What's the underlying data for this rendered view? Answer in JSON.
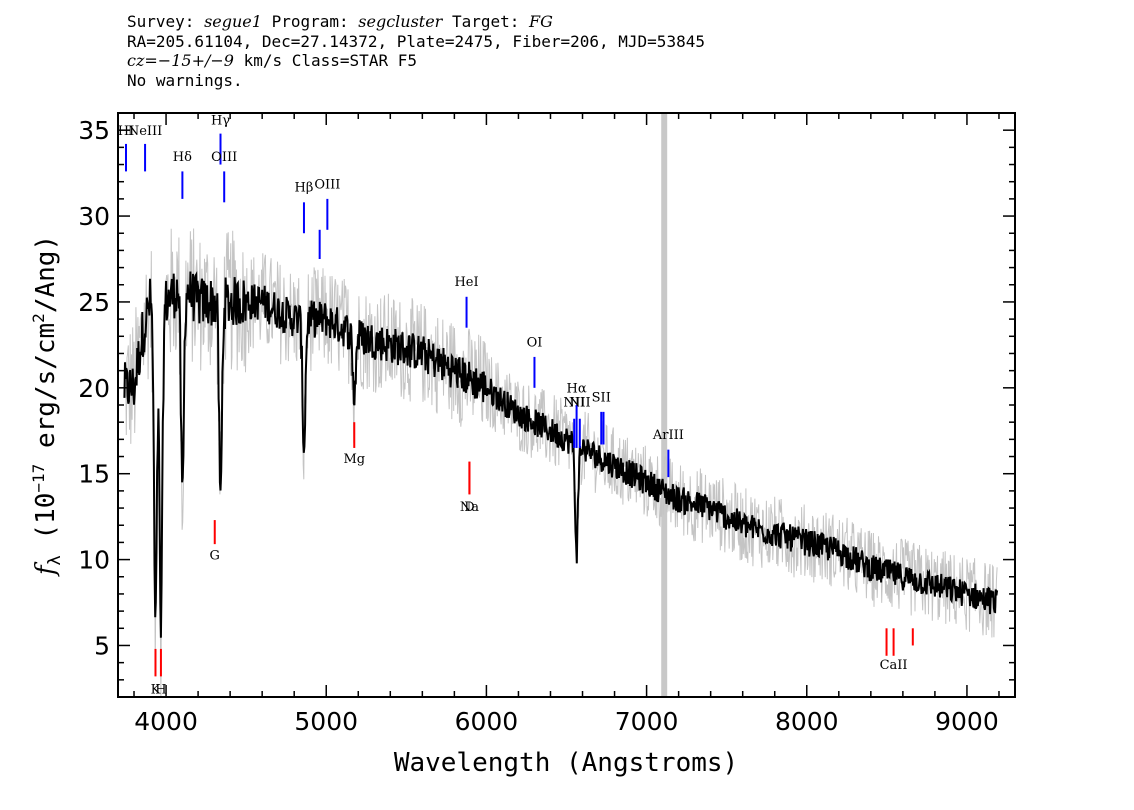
{
  "header": {
    "line1": {
      "survey_label": "Survey: ",
      "survey": "segue1",
      "program_label": " Program: ",
      "program": "segcluster",
      "target_label": " Target: ",
      "target": "FG"
    },
    "line2": "RA=205.61104, Dec=27.14372, Plate=2475, Fiber=206, MJD=53845",
    "line3": {
      "cz_label": "cz",
      "cz_value": "=−15+/−9",
      "cz_units": " km/s Class=STAR F5"
    },
    "line4": "No warnings."
  },
  "chart_data": {
    "type": "line",
    "xlabel": "Wavelength (Angstroms)",
    "ylabel": "fλ (10⁻¹⁷ erg/s/cm²/Ang)",
    "xlim": [
      3700,
      9300
    ],
    "ylim": [
      2,
      36
    ],
    "xticks": [
      4000,
      5000,
      6000,
      7000,
      8000,
      9000
    ],
    "yticks": [
      5,
      10,
      15,
      20,
      25,
      30,
      35
    ],
    "grid": false,
    "series": [
      {
        "role": "flux_error_band",
        "color": "#c4c4c4",
        "x": [
          3800,
          3850,
          3900,
          3950,
          4000,
          4100,
          4200,
          4300,
          4400,
          4500,
          4600,
          4700,
          4800,
          4900,
          5000,
          5200,
          5400,
          5600,
          5800,
          6000,
          6200,
          6400,
          6600,
          6800,
          7000,
          7200,
          7400,
          7600,
          7800,
          8000,
          8200,
          8400,
          8600,
          8800,
          9000,
          9190
        ],
        "y": [
          20,
          23,
          25,
          24,
          25,
          26,
          25,
          25,
          25,
          25,
          25,
          24.5,
          24,
          24,
          24,
          23,
          22.5,
          22,
          21,
          20,
          18.5,
          17.5,
          16.5,
          15.5,
          14.5,
          13.5,
          13,
          12,
          11.5,
          11,
          10.5,
          9.5,
          9,
          8.5,
          8,
          7.5
        ]
      },
      {
        "role": "flux",
        "color": "#000000",
        "x": [
          3800,
          3850,
          3900,
          3950,
          4000,
          4100,
          4200,
          4300,
          4400,
          4500,
          4600,
          4700,
          4800,
          4900,
          5000,
          5200,
          5400,
          5600,
          5800,
          6000,
          6200,
          6400,
          6600,
          6800,
          7000,
          7200,
          7400,
          7600,
          7800,
          8000,
          8200,
          8400,
          8600,
          8800,
          9000,
          9190
        ],
        "y": [
          20,
          23,
          25,
          24,
          25,
          26,
          25,
          25,
          25,
          25,
          25,
          24.5,
          24,
          24,
          24,
          23,
          22.5,
          22,
          21,
          20,
          18.5,
          17.5,
          16.5,
          15.5,
          14.5,
          13.5,
          13,
          12,
          11.5,
          11,
          10.5,
          9.5,
          9,
          8.5,
          8,
          7.5
        ]
      }
    ],
    "absorption_dips": [
      {
        "x": 3934,
        "y": 6
      },
      {
        "x": 3968,
        "y": 6
      },
      {
        "x": 4102,
        "y": 13.5
      },
      {
        "x": 4340,
        "y": 13.5
      },
      {
        "x": 4861,
        "y": 16.5
      },
      {
        "x": 5175,
        "y": 19.5
      },
      {
        "x": 6563,
        "y": 10.5
      }
    ],
    "gap_band": {
      "x": 7110,
      "color": "#c8c8c8"
    },
    "emission_lines": [
      {
        "label": "HI",
        "x": 3750,
        "y_label": 34.6,
        "y_top": 34.2,
        "y_bottom": 32.6
      },
      {
        "label": "NeIII",
        "x": 3869,
        "y_label": 34.6,
        "y_top": 34.2,
        "y_bottom": 32.6
      },
      {
        "label": "Hδ",
        "x": 4102,
        "y_label": 33.1,
        "y_top": 32.6,
        "y_bottom": 31.0
      },
      {
        "label": "Hγ",
        "x": 4340,
        "y_label": 35.2,
        "y_top": 34.8,
        "y_bottom": 33.0
      },
      {
        "label": "OIII",
        "x": 4363,
        "y_label": 33.1,
        "y_top": 32.6,
        "y_bottom": 30.8
      },
      {
        "label": "Hβ",
        "x": 4861,
        "y_label": 31.3,
        "y_top": 30.8,
        "y_bottom": 29.0
      },
      {
        "label": "OIII",
        "x": 5007,
        "y_label": 31.5,
        "y_top": 31.0,
        "y_bottom": 29.2
      },
      {
        "label": "",
        "x": 4959,
        "y_label": 29.2,
        "y_top": 29.2,
        "y_bottom": 27.5
      },
      {
        "label": "HeI",
        "x": 5876,
        "y_label": 25.8,
        "y_top": 25.3,
        "y_bottom": 23.5
      },
      {
        "label": "OI",
        "x": 6300,
        "y_label": 22.3,
        "y_top": 21.8,
        "y_bottom": 20.0
      },
      {
        "label": "NII",
        "x": 6548,
        "y_label": 18.8,
        "y_top": 18.2,
        "y_bottom": 16.5
      },
      {
        "label": "Hα",
        "x": 6563,
        "y_label": 19.6,
        "y_top": 19.0,
        "y_bottom": 16.5
      },
      {
        "label": "NII",
        "x": 6583,
        "y_label": 18.8,
        "y_top": 18.2,
        "y_bottom": 16.5
      },
      {
        "label": "SII",
        "x": 6717,
        "y_label": 19.1,
        "y_top": 18.6,
        "y_bottom": 16.7
      },
      {
        "label": "",
        "x": 6731,
        "y_label": 18.6,
        "y_top": 18.6,
        "y_bottom": 16.7
      },
      {
        "label": "ArIII",
        "x": 7136,
        "y_label": 16.9,
        "y_top": 16.4,
        "y_bottom": 14.8
      }
    ],
    "absorption_lines": [
      {
        "label": "K",
        "x": 3934,
        "y_label": 2.8,
        "y_top": 4.8,
        "y_bottom": 3.2
      },
      {
        "label": "H",
        "x": 3968,
        "y_label": 2.8,
        "y_top": 4.8,
        "y_bottom": 3.2
      },
      {
        "label": "G",
        "x": 4304,
        "y_label": 10.6,
        "y_top": 12.3,
        "y_bottom": 10.9
      },
      {
        "label": "Mg",
        "x": 5175,
        "y_label": 16.2,
        "y_top": 18.0,
        "y_bottom": 16.5
      },
      {
        "label": "Na",
        "x": 5894,
        "y_label": 13.4,
        "y_top": 15.7,
        "y_bottom": 13.8
      },
      {
        "label": "D",
        "x": 5894,
        "y_label": 13.4,
        "y_top": 15.7,
        "y_bottom": 13.8
      },
      {
        "label": "CaII",
        "x": 8542,
        "y_label": 4.2,
        "y_top": 6.0,
        "y_bottom": 4.4
      },
      {
        "label": "",
        "x": 8498,
        "y_label": 4.4,
        "y_top": 6.0,
        "y_bottom": 4.4
      },
      {
        "label": "",
        "x": 8662,
        "y_label": 5.0,
        "y_top": 6.0,
        "y_bottom": 5.0
      }
    ],
    "colors": {
      "emission": "#0000ff",
      "absorption": "#ff0000",
      "error": "#c4c4c4",
      "flux": "#000000"
    }
  }
}
